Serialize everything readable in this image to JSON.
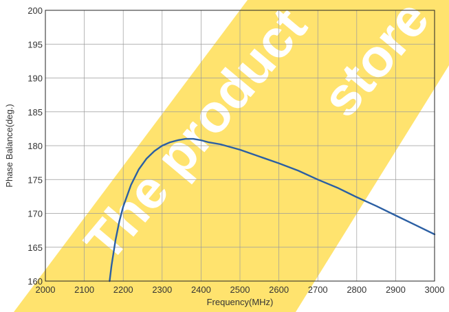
{
  "chart_data": {
    "type": "line",
    "title": "",
    "xlabel": "Frequency(MHz)",
    "ylabel": "Phase Balance(deg.)",
    "xlim": [
      2000,
      3000
    ],
    "ylim": [
      160,
      200
    ],
    "x_ticks": [
      "2000",
      "2100",
      "2200",
      "2300",
      "2400",
      "2500",
      "2600",
      "2700",
      "2800",
      "2900",
      "3000"
    ],
    "y_ticks": [
      "160",
      "165",
      "170",
      "175",
      "180",
      "185",
      "190",
      "195",
      "200"
    ],
    "grid": true,
    "series": [
      {
        "color": "#2b5fa3",
        "x": [
          2165,
          2170,
          2180,
          2190,
          2200,
          2220,
          2240,
          2260,
          2280,
          2300,
          2320,
          2340,
          2360,
          2380,
          2400,
          2420,
          2450,
          2500,
          2550,
          2600,
          2650,
          2700,
          2750,
          2800,
          2850,
          2900,
          2950,
          3000
        ],
        "y": [
          160.0,
          162.3,
          166.0,
          168.8,
          171.0,
          174.2,
          176.5,
          178.1,
          179.2,
          180.0,
          180.5,
          180.8,
          181.0,
          181.0,
          180.8,
          180.5,
          180.2,
          179.4,
          178.4,
          177.4,
          176.3,
          175.0,
          173.8,
          172.4,
          171.1,
          169.7,
          168.3,
          166.9
        ]
      }
    ]
  },
  "watermark": {
    "line1": "The product",
    "line2": "store",
    "color": "#ffe36e"
  }
}
